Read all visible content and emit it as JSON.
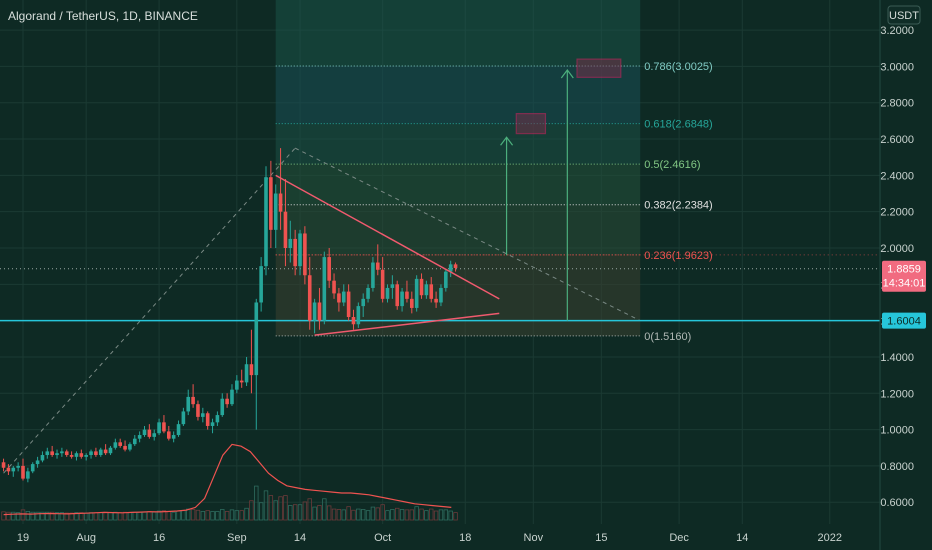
{
  "header": {
    "title": "Algorand / TetherUS, 1D, BINANCE",
    "currency": "USDT"
  },
  "colors": {
    "background": "#0e2a24",
    "grid": "#1b3a33",
    "up": "#26a69a",
    "down": "#ef5350",
    "support": "#26c6da",
    "wedge": "#f05a6e",
    "projection": "#4caf7d",
    "target_box": "#e91e63",
    "volume_ma": "#ef5350"
  },
  "fib_levels": [
    {
      "ratio": "0.786",
      "price": 3.0025,
      "label": "0.786(3.0025)",
      "color": "#80cbc4"
    },
    {
      "ratio": "0.618",
      "price": 2.6848,
      "label": "0.618(2.6848)",
      "color": "#26a69a"
    },
    {
      "ratio": "0.5",
      "price": 2.4616,
      "label": "0.5(2.4616)",
      "color": "#81c784"
    },
    {
      "ratio": "0.382",
      "price": 2.2384,
      "label": "0.382(2.2384)",
      "color": "#e0e0e0"
    },
    {
      "ratio": "0.236",
      "price": 1.9623,
      "label": "0.236(1.9623)",
      "color": "#ef5350"
    },
    {
      "ratio": "0",
      "price": 1.516,
      "label": "0(1.5160)",
      "color": "#b0b8b5"
    }
  ],
  "price_tags": {
    "current": {
      "value": "1.8859",
      "countdown": "14:34:01",
      "price": 1.8859
    },
    "support": {
      "value": "1.6004",
      "price": 1.6004
    }
  },
  "chart_data": {
    "type": "candlestick",
    "title": "Algorand / TetherUS, 1D, BINANCE",
    "ylabel": "USDT",
    "ylim": [
      0.55,
      3.3
    ],
    "y_ticks": [
      "3.2000",
      "3.0000",
      "2.8000",
      "2.6000",
      "2.4000",
      "2.2000",
      "2.0000",
      "1.8000",
      "1.6000",
      "1.4000",
      "1.2000",
      "1.0000",
      "0.8000",
      "0.6000"
    ],
    "y_tick_values": [
      3.2,
      3.0,
      2.8,
      2.6,
      2.4,
      2.2,
      2.0,
      1.8,
      1.6,
      1.4,
      1.2,
      1.0,
      0.8,
      0.6
    ],
    "x_ticks": [
      {
        "label": "19",
        "day": 0
      },
      {
        "label": "Aug",
        "day": 13
      },
      {
        "label": "16",
        "day": 28
      },
      {
        "label": "Sep",
        "day": 44
      },
      {
        "label": "14",
        "day": 57
      },
      {
        "label": "Oct",
        "day": 74
      },
      {
        "label": "18",
        "day": 91
      },
      {
        "label": "Nov",
        "day": 105
      },
      {
        "label": "15",
        "day": 119
      },
      {
        "label": "Dec",
        "day": 135
      },
      {
        "label": "14",
        "day": 148
      },
      {
        "label": "2022",
        "day": 166
      }
    ],
    "x_domain_days": [
      -4,
      178
    ],
    "ohlc_start_day": -4,
    "ohlc": [
      [
        0.82,
        0.84,
        0.77,
        0.79
      ],
      [
        0.79,
        0.81,
        0.75,
        0.77
      ],
      [
        0.77,
        0.8,
        0.74,
        0.79
      ],
      [
        0.79,
        0.82,
        0.77,
        0.8
      ],
      [
        0.8,
        0.84,
        0.72,
        0.73
      ],
      [
        0.73,
        0.79,
        0.71,
        0.77
      ],
      [
        0.77,
        0.82,
        0.76,
        0.81
      ],
      [
        0.81,
        0.85,
        0.79,
        0.83
      ],
      [
        0.83,
        0.88,
        0.82,
        0.86
      ],
      [
        0.86,
        0.9,
        0.84,
        0.88
      ],
      [
        0.88,
        0.91,
        0.85,
        0.86
      ],
      [
        0.86,
        0.89,
        0.84,
        0.87
      ],
      [
        0.87,
        0.9,
        0.85,
        0.88
      ],
      [
        0.88,
        0.89,
        0.85,
        0.86
      ],
      [
        0.86,
        0.88,
        0.84,
        0.85
      ],
      [
        0.85,
        0.88,
        0.83,
        0.87
      ],
      [
        0.87,
        0.89,
        0.84,
        0.85
      ],
      [
        0.85,
        0.87,
        0.83,
        0.86
      ],
      [
        0.86,
        0.89,
        0.84,
        0.88
      ],
      [
        0.88,
        0.9,
        0.85,
        0.86
      ],
      [
        0.86,
        0.9,
        0.85,
        0.89
      ],
      [
        0.89,
        0.92,
        0.86,
        0.87
      ],
      [
        0.87,
        0.91,
        0.86,
        0.9
      ],
      [
        0.9,
        0.95,
        0.89,
        0.93
      ],
      [
        0.93,
        0.95,
        0.9,
        0.91
      ],
      [
        0.91,
        0.94,
        0.88,
        0.89
      ],
      [
        0.89,
        0.93,
        0.88,
        0.92
      ],
      [
        0.92,
        0.97,
        0.91,
        0.95
      ],
      [
        0.95,
        0.99,
        0.93,
        0.97
      ],
      [
        0.97,
        1.02,
        0.96,
        1.0
      ],
      [
        1.0,
        1.03,
        0.95,
        0.96
      ],
      [
        0.96,
        1.0,
        0.94,
        0.98
      ],
      [
        0.98,
        1.06,
        0.97,
        1.04
      ],
      [
        1.04,
        1.08,
        0.98,
        0.99
      ],
      [
        0.99,
        1.02,
        0.94,
        0.95
      ],
      [
        0.95,
        0.99,
        0.93,
        0.97
      ],
      [
        0.97,
        1.05,
        0.96,
        1.03
      ],
      [
        1.03,
        1.12,
        1.02,
        1.1
      ],
      [
        1.1,
        1.22,
        1.08,
        1.18
      ],
      [
        1.18,
        1.25,
        1.12,
        1.14
      ],
      [
        1.14,
        1.16,
        1.05,
        1.07
      ],
      [
        1.07,
        1.12,
        1.04,
        1.09
      ],
      [
        1.09,
        1.1,
        1.0,
        1.02
      ],
      [
        1.02,
        1.06,
        0.98,
        1.04
      ],
      [
        1.04,
        1.1,
        1.02,
        1.08
      ],
      [
        1.08,
        1.2,
        1.07,
        1.17
      ],
      [
        1.17,
        1.2,
        1.12,
        1.14
      ],
      [
        1.14,
        1.25,
        1.13,
        1.22
      ],
      [
        1.22,
        1.3,
        1.2,
        1.27
      ],
      [
        1.27,
        1.33,
        1.23,
        1.26
      ],
      [
        1.26,
        1.4,
        1.24,
        1.36
      ],
      [
        1.36,
        1.55,
        1.2,
        1.3
      ],
      [
        1.3,
        1.72,
        1.0,
        1.7
      ],
      [
        1.7,
        1.95,
        1.65,
        1.9
      ],
      [
        1.9,
        2.45,
        1.85,
        2.39
      ],
      [
        2.39,
        2.48,
        2.0,
        2.1
      ],
      [
        2.1,
        2.35,
        2.0,
        2.3
      ],
      [
        2.3,
        2.55,
        2.1,
        2.2
      ],
      [
        2.2,
        2.38,
        1.9,
        2.0
      ],
      [
        2.0,
        2.15,
        1.92,
        2.05
      ],
      [
        2.05,
        2.1,
        1.85,
        1.9
      ],
      [
        1.9,
        2.1,
        1.85,
        2.08
      ],
      [
        2.08,
        2.12,
        1.8,
        1.85
      ],
      [
        1.85,
        1.95,
        1.55,
        1.6
      ],
      [
        1.6,
        1.72,
        1.53,
        1.7
      ],
      [
        1.7,
        1.78,
        1.55,
        1.6
      ],
      [
        1.6,
        1.98,
        1.58,
        1.95
      ],
      [
        1.95,
        2.0,
        1.78,
        1.82
      ],
      [
        1.82,
        1.86,
        1.72,
        1.75
      ],
      [
        1.75,
        1.78,
        1.65,
        1.7
      ],
      [
        1.7,
        1.8,
        1.68,
        1.76
      ],
      [
        1.76,
        1.8,
        1.6,
        1.62
      ],
      [
        1.62,
        1.66,
        1.55,
        1.58
      ],
      [
        1.58,
        1.7,
        1.56,
        1.68
      ],
      [
        1.68,
        1.75,
        1.62,
        1.72
      ],
      [
        1.72,
        1.8,
        1.7,
        1.78
      ],
      [
        1.78,
        1.95,
        1.76,
        1.92
      ],
      [
        1.92,
        2.02,
        1.85,
        1.88
      ],
      [
        1.88,
        1.95,
        1.7,
        1.72
      ],
      [
        1.72,
        1.8,
        1.7,
        1.78
      ],
      [
        1.78,
        1.85,
        1.72,
        1.8
      ],
      [
        1.8,
        1.82,
        1.66,
        1.68
      ],
      [
        1.68,
        1.78,
        1.65,
        1.76
      ],
      [
        1.76,
        1.82,
        1.7,
        1.72
      ],
      [
        1.72,
        1.76,
        1.64,
        1.67
      ],
      [
        1.67,
        1.85,
        1.65,
        1.83
      ],
      [
        1.83,
        1.86,
        1.72,
        1.74
      ],
      [
        1.74,
        1.82,
        1.72,
        1.8
      ],
      [
        1.8,
        1.84,
        1.7,
        1.72
      ],
      [
        1.72,
        1.76,
        1.67,
        1.7
      ],
      [
        1.7,
        1.8,
        1.68,
        1.78
      ],
      [
        1.78,
        1.88,
        1.76,
        1.87
      ],
      [
        1.87,
        1.93,
        1.84,
        1.91
      ],
      [
        1.91,
        1.92,
        1.87,
        1.89
      ]
    ],
    "volume_ma": [
      0.3,
      0.32,
      0.34,
      0.33,
      0.35,
      0.36,
      0.35,
      0.34,
      0.36,
      0.38,
      0.4,
      0.42,
      0.41,
      0.4,
      0.42,
      0.44,
      0.46,
      0.45,
      0.47,
      0.5,
      0.55,
      0.7,
      1.2,
      2.4,
      3.6,
      4.2,
      4.1,
      3.8,
      3.2,
      2.6,
      2.2,
      1.9,
      1.8,
      1.7,
      1.65,
      1.6,
      1.55,
      1.5,
      1.5,
      1.45,
      1.4,
      1.3,
      1.2,
      1.1,
      1.0,
      0.9,
      0.85,
      0.8,
      0.75,
      0.7
    ]
  }
}
